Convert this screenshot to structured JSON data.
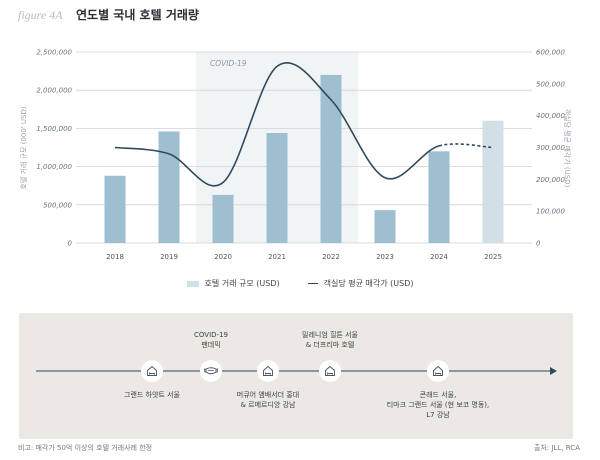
{
  "header": {
    "figure_label": "figure 4A",
    "title": "연도별 국내 호텔 거래량"
  },
  "chart_data": {
    "type": "bar",
    "title": "연도별 국내 호텔 거래량",
    "categories": [
      "2018",
      "2019",
      "2020",
      "2021",
      "2022",
      "2023",
      "2024",
      "2025"
    ],
    "series": [
      {
        "name": "호텔 거래 규모 (USD)",
        "type": "bar",
        "axis": "left",
        "values": [
          880000,
          1460000,
          630000,
          1440000,
          2200000,
          430000,
          1200000,
          1600000
        ],
        "projected": [
          false,
          false,
          false,
          false,
          false,
          false,
          false,
          true
        ],
        "color": "#9dbfcf",
        "projected_color": "#d3dfe6"
      },
      {
        "name": "객실당 평균 매각가 (USD)",
        "type": "line",
        "axis": "right",
        "values": [
          300000,
          280000,
          190000,
          555000,
          450000,
          205000,
          305000,
          300000
        ],
        "dashed_from_index": 6,
        "color": "#2f4a5c"
      }
    ],
    "ylabel": "호텔 거래 규모 (000' USD)",
    "ylabel_right": "객실당 평균 매각가 (USD)",
    "ylim": [
      0,
      2500000
    ],
    "ylim_right": [
      0,
      600000
    ],
    "yticks": [
      "0",
      "500,000",
      "1,000,000",
      "1,500,000",
      "2,000,000",
      "2,500,000"
    ],
    "yticks_right": [
      "0",
      "100,000",
      "200,000",
      "300,000",
      "400,000",
      "500,000",
      "600,000"
    ],
    "ytick_values": [
      0,
      500000,
      1000000,
      1500000,
      2000000,
      2500000
    ],
    "ytick_right_values": [
      0,
      100000,
      200000,
      300000,
      400000,
      500000,
      600000
    ],
    "annotations": [
      {
        "label": "COVID-19",
        "from": "2020",
        "to": "2022",
        "kind": "shaded-span"
      }
    ],
    "grid": true,
    "legend": "bottom-center",
    "colors": {
      "shade": "#f1f4f5",
      "grid": "#cfd3d6"
    }
  },
  "legend": {
    "bar_label": "호텔 거래 규모 (USD)",
    "line_label": "객실당 평균 매각가 (USD)"
  },
  "timeline": {
    "events": [
      {
        "icon": "hotel-icon",
        "label_below": "그랜드 하얏트 서울"
      },
      {
        "icon": "mask-icon",
        "label_above": "COVID-19\n팬데믹"
      },
      {
        "icon": "hotel-icon",
        "label_below": "머큐어 앰배서더 홍대\n& 르메르디앙 강남"
      },
      {
        "icon": "hotel-icon",
        "label_above": "밀레니엄 힐튼 서울\n& 더프리마 호텔"
      },
      {
        "icon": "hotel-icon",
        "label_below": "콘래드 서울,\n티마크 그랜드 서울 (현 보코 명동),\nL7 강남"
      }
    ]
  },
  "footer": {
    "note": "비고: 매각가 50억 이상의 호텔 거래사례 한정",
    "source": "출처: JLL, RCA"
  }
}
